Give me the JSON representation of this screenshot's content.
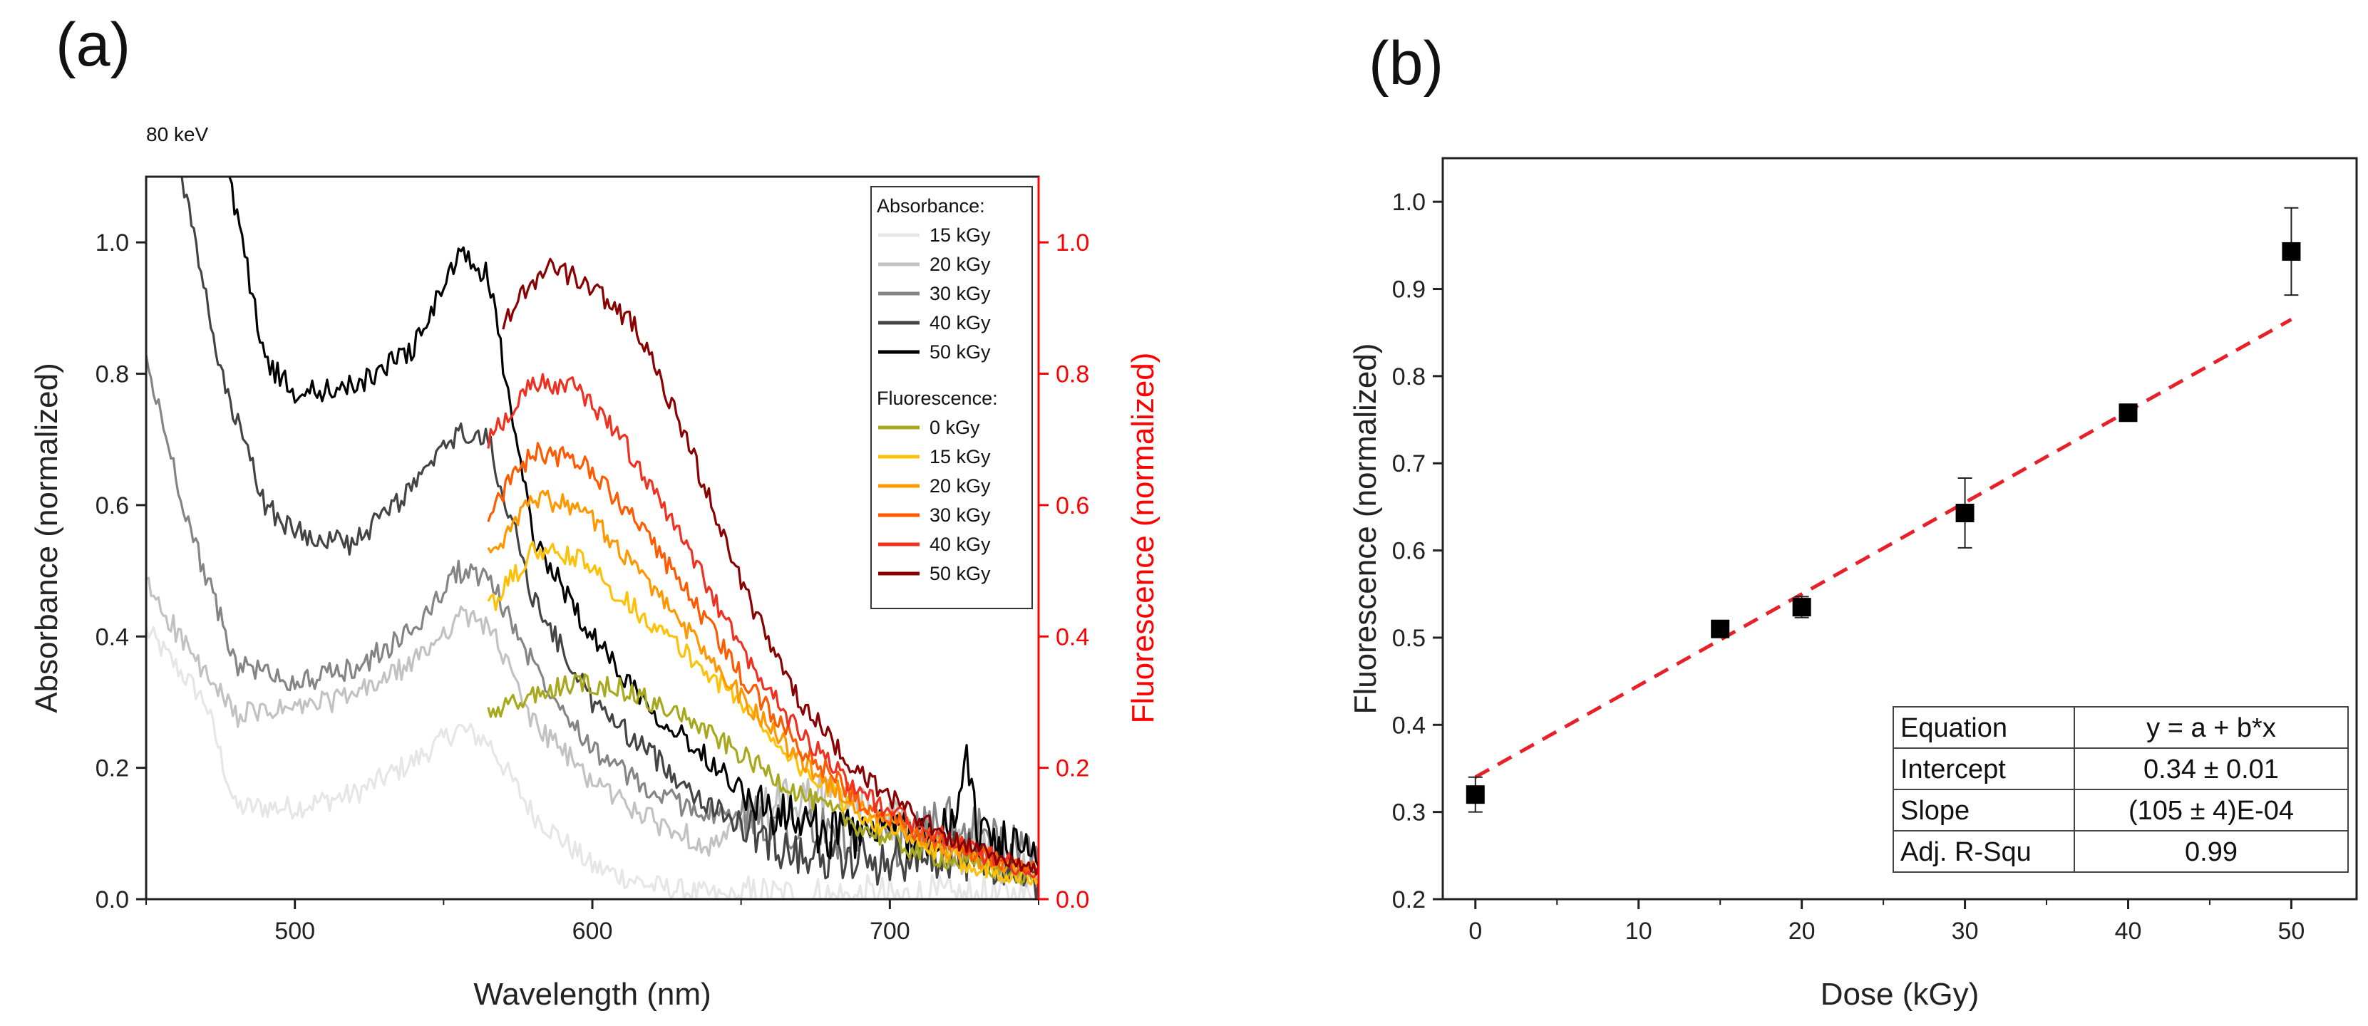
{
  "chart_data": [
    {
      "panel": "(a)",
      "type": "line",
      "annotation": "80 keV",
      "xlabel": "Wavelength (nm)",
      "ylabel": "Absorbance (normalized)",
      "y2label": "Fluorescence (normalized)",
      "xlim": [
        450,
        750
      ],
      "ylim": [
        0,
        1.1
      ],
      "y2lim": [
        0,
        1.1
      ],
      "xticks": [
        "500",
        "600",
        "700"
      ],
      "xtick_values": [
        500,
        600,
        700
      ],
      "yticks": [
        "0.0",
        "0.2",
        "0.4",
        "0.6",
        "0.8",
        "1.0"
      ],
      "ytick_values": [
        0,
        0.2,
        0.4,
        0.6,
        0.8,
        1.0
      ],
      "y2ticks": [
        "0.0",
        "0.2",
        "0.4",
        "0.6",
        "0.8",
        "1.0"
      ],
      "y2tick_values": [
        0,
        0.2,
        0.4,
        0.6,
        0.8,
        1.0
      ],
      "grid": false,
      "legend_position": "top-right",
      "absorbance_color_right_axis": "#ff0000",
      "legend_groups": [
        {
          "title": "Absorbance:",
          "entries": [
            {
              "label": "15 kGy",
              "color": "#e6e6e6"
            },
            {
              "label": "20 kGy",
              "color": "#c2c2c2"
            },
            {
              "label": "30 kGy",
              "color": "#858585"
            },
            {
              "label": "40 kGy",
              "color": "#444444"
            },
            {
              "label": "50 kGy",
              "color": "#000000"
            }
          ]
        },
        {
          "title": "Fluorescence:",
          "entries": [
            {
              "label": "0 kGy",
              "color": "#a7a81b"
            },
            {
              "label": "15 kGy",
              "color": "#ffc107"
            },
            {
              "label": "20 kGy",
              "color": "#ff9800"
            },
            {
              "label": "30 kGy",
              "color": "#ff5a00"
            },
            {
              "label": "40 kGy",
              "color": "#f03020"
            },
            {
              "label": "50 kGy",
              "color": "#8b0000"
            }
          ]
        }
      ],
      "series": [
        {
          "group": "Absorbance",
          "color": "#e6e6e6",
          "x": [
            450,
            470,
            480,
            500,
            520,
            540,
            555,
            565,
            580,
            600,
            620,
            650,
            680,
            710,
            740,
            750
          ],
          "y": [
            0.41,
            0.3,
            0.14,
            0.14,
            0.16,
            0.21,
            0.26,
            0.24,
            0.13,
            0.05,
            0.02,
            0.0,
            0.0,
            0.0,
            0.0,
            0.0
          ]
        },
        {
          "group": "Absorbance",
          "color": "#c2c2c2",
          "x": [
            450,
            470,
            480,
            500,
            520,
            540,
            555,
            565,
            580,
            600,
            620,
            640,
            660,
            680,
            700,
            720,
            740,
            750
          ],
          "y": [
            0.48,
            0.34,
            0.28,
            0.29,
            0.31,
            0.36,
            0.43,
            0.42,
            0.27,
            0.18,
            0.12,
            0.08,
            0.14,
            0.16,
            0.12,
            0.08,
            0.06,
            0.05
          ]
        },
        {
          "group": "Absorbance",
          "color": "#858585",
          "x": [
            450,
            465,
            480,
            500,
            520,
            540,
            555,
            565,
            580,
            600,
            620,
            640,
            660,
            680,
            700,
            720,
            740,
            750
          ],
          "y": [
            0.82,
            0.56,
            0.36,
            0.33,
            0.35,
            0.41,
            0.5,
            0.49,
            0.36,
            0.23,
            0.16,
            0.13,
            0.12,
            0.1,
            0.08,
            0.12,
            0.08,
            0.05
          ]
        },
        {
          "group": "Absorbance",
          "color": "#444444",
          "x": [
            462,
            475,
            490,
            500,
            520,
            540,
            555,
            565,
            580,
            600,
            620,
            640,
            660,
            680,
            700,
            720,
            740,
            750
          ],
          "y": [
            1.1,
            0.8,
            0.6,
            0.56,
            0.54,
            0.63,
            0.71,
            0.7,
            0.46,
            0.3,
            0.22,
            0.14,
            0.09,
            0.06,
            0.06,
            0.07,
            0.05,
            0.03
          ]
        },
        {
          "group": "Absorbance",
          "color": "#000000",
          "x": [
            478,
            490,
            500,
            520,
            540,
            555,
            565,
            580,
            600,
            620,
            640,
            660,
            680,
            700,
            720,
            725,
            730,
            740,
            750
          ],
          "y": [
            1.1,
            0.82,
            0.77,
            0.78,
            0.84,
            0.98,
            0.95,
            0.55,
            0.4,
            0.29,
            0.21,
            0.13,
            0.1,
            0.1,
            0.1,
            0.22,
            0.1,
            0.08,
            0.05
          ]
        },
        {
          "group": "Fluorescence",
          "color": "#a7a81b",
          "x": [
            565,
            580,
            595,
            610,
            630,
            650,
            670,
            690,
            710,
            730,
            750
          ],
          "y": [
            0.28,
            0.31,
            0.33,
            0.32,
            0.28,
            0.22,
            0.16,
            0.11,
            0.07,
            0.05,
            0.03
          ]
        },
        {
          "group": "Fluorescence",
          "color": "#ffc107",
          "x": [
            565,
            580,
            595,
            610,
            630,
            650,
            670,
            690,
            710,
            730,
            750
          ],
          "y": [
            0.44,
            0.53,
            0.52,
            0.46,
            0.38,
            0.3,
            0.2,
            0.13,
            0.08,
            0.05,
            0.03
          ]
        },
        {
          "group": "Fluorescence",
          "color": "#ff9800",
          "x": [
            565,
            580,
            595,
            610,
            630,
            650,
            670,
            690,
            710,
            730,
            750
          ],
          "y": [
            0.52,
            0.61,
            0.6,
            0.53,
            0.42,
            0.31,
            0.21,
            0.14,
            0.09,
            0.06,
            0.04
          ]
        },
        {
          "group": "Fluorescence",
          "color": "#ff5a00",
          "x": [
            565,
            580,
            595,
            610,
            630,
            650,
            670,
            690,
            710,
            730,
            750
          ],
          "y": [
            0.59,
            0.68,
            0.67,
            0.6,
            0.48,
            0.34,
            0.23,
            0.15,
            0.1,
            0.07,
            0.04
          ]
        },
        {
          "group": "Fluorescence",
          "color": "#f03020",
          "x": [
            565,
            580,
            595,
            610,
            630,
            650,
            670,
            690,
            710,
            730,
            750
          ],
          "y": [
            0.7,
            0.79,
            0.78,
            0.7,
            0.55,
            0.38,
            0.25,
            0.16,
            0.11,
            0.07,
            0.04
          ]
        },
        {
          "group": "Fluorescence",
          "color": "#8b0000",
          "x": [
            570,
            585,
            600,
            615,
            630,
            650,
            670,
            690,
            710,
            730,
            750
          ],
          "y": [
            0.88,
            0.97,
            0.93,
            0.87,
            0.72,
            0.48,
            0.3,
            0.19,
            0.12,
            0.07,
            0.05
          ]
        }
      ]
    },
    {
      "panel": "(b)",
      "type": "scatter",
      "xlabel": "Dose (kGy)",
      "ylabel": "Fluorescence (normalized)",
      "xlim": [
        -2,
        54
      ],
      "ylim": [
        0.2,
        1.05
      ],
      "xticks": [
        "0",
        "10",
        "20",
        "30",
        "40",
        "50"
      ],
      "xtick_values": [
        0,
        10,
        20,
        30,
        40,
        50
      ],
      "yticks": [
        "0.2",
        "0.3",
        "0.4",
        "0.5",
        "0.6",
        "0.7",
        "0.8",
        "0.9",
        "1.0"
      ],
      "ytick_values": [
        0.2,
        0.3,
        0.4,
        0.5,
        0.6,
        0.7,
        0.8,
        0.9,
        1.0
      ],
      "grid": false,
      "points": [
        {
          "x": 0,
          "y": 0.32,
          "err": 0.02
        },
        {
          "x": 15,
          "y": 0.51,
          "err": 0.0
        },
        {
          "x": 20,
          "y": 0.535,
          "err": 0.012
        },
        {
          "x": 30,
          "y": 0.643,
          "err": 0.04
        },
        {
          "x": 40,
          "y": 0.758,
          "err": 0.0
        },
        {
          "x": 50,
          "y": 0.943,
          "err": 0.05
        }
      ],
      "fit": {
        "intercept": 0.34,
        "slope": 0.0105,
        "x_range": [
          0,
          50
        ],
        "color": "#e8202a",
        "style": "dashed"
      },
      "fit_table": [
        [
          "Equation",
          "y = a + b*x"
        ],
        [
          "Intercept",
          "0.34 ± 0.01"
        ],
        [
          "Slope",
          "(105 ± 4)E-04"
        ],
        [
          "Adj. R-Squ",
          "0.99"
        ]
      ]
    }
  ]
}
